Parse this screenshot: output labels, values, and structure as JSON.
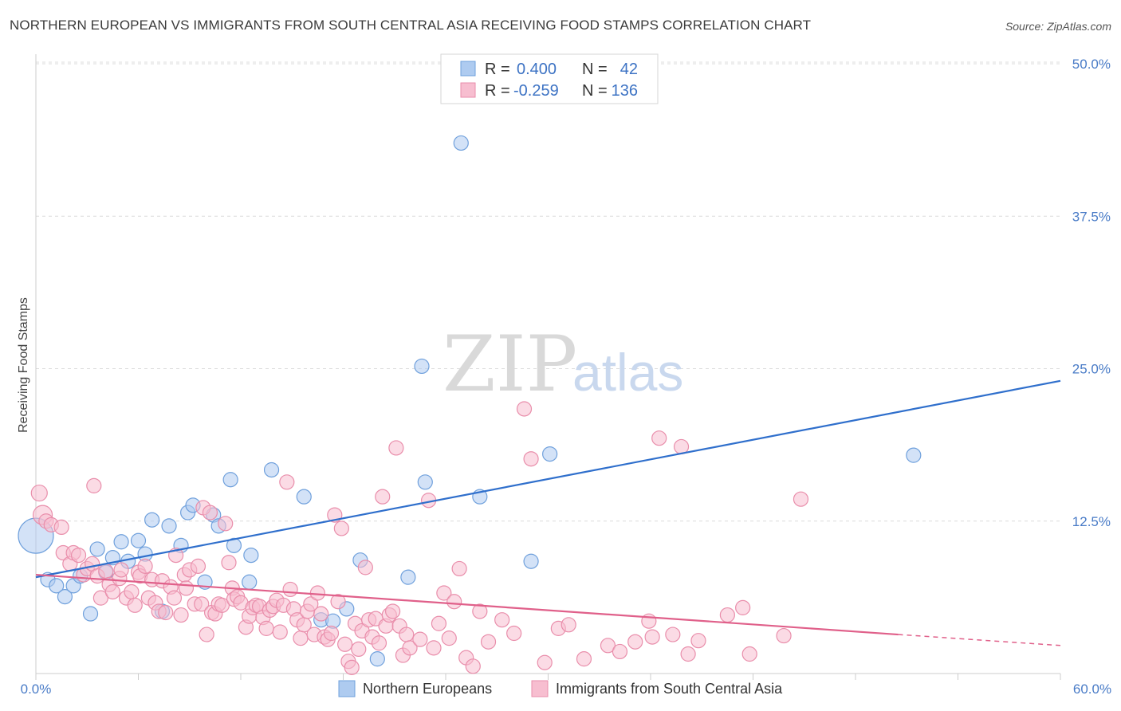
{
  "title": "NORTHERN EUROPEAN VS IMMIGRANTS FROM SOUTH CENTRAL ASIA RECEIVING FOOD STAMPS CORRELATION CHART",
  "source": "Source: ZipAtlas.com",
  "watermark": {
    "zip": "ZIP",
    "atlas": "atlas"
  },
  "chart_data": {
    "type": "scatter",
    "title": "NORTHERN EUROPEAN VS IMMIGRANTS FROM SOUTH CENTRAL ASIA RECEIVING FOOD STAMPS CORRELATION CHART",
    "xlabel": "",
    "ylabel": "Receiving Food Stamps",
    "xlim": [
      0,
      60
    ],
    "ylim": [
      0,
      50
    ],
    "x_tick_labels": [
      "0.0%",
      "60.0%"
    ],
    "y_ticks": [
      12.5,
      25.0,
      37.5,
      50.0
    ],
    "y_tick_labels": [
      "12.5%",
      "25.0%",
      "37.5%",
      "50.0%"
    ],
    "grid": true,
    "legend_top": [
      {
        "r_label": "R =",
        "r_value": "0.400",
        "n_label": "N =",
        "n_value": "42"
      },
      {
        "r_label": "R =",
        "r_value": "-0.259",
        "n_label": "N =",
        "n_value": "136"
      }
    ],
    "series": [
      {
        "name": "Northern Europeans",
        "color": "#6fa0dc",
        "fill": "#aecbf0",
        "line_color": "#2f6fcc",
        "trend": {
          "x0": 0,
          "y0": 7.9,
          "x1": 60,
          "y1": 24.0
        },
        "points": [
          [
            0.0,
            11.3,
            22
          ],
          [
            0.7,
            7.7,
            9
          ],
          [
            1.2,
            7.2,
            9
          ],
          [
            1.7,
            6.3,
            9
          ],
          [
            2.2,
            7.2,
            9
          ],
          [
            2.6,
            8.0,
            9
          ],
          [
            3.2,
            4.9,
            9
          ],
          [
            3.6,
            10.2,
            9
          ],
          [
            4.1,
            8.3,
            9
          ],
          [
            4.5,
            9.5,
            9
          ],
          [
            5.0,
            10.8,
            9
          ],
          [
            5.4,
            9.2,
            9
          ],
          [
            6.0,
            10.9,
            9
          ],
          [
            6.4,
            9.8,
            9
          ],
          [
            6.8,
            12.6,
            9
          ],
          [
            7.4,
            5.1,
            9
          ],
          [
            7.8,
            12.1,
            9
          ],
          [
            8.5,
            10.5,
            9
          ],
          [
            8.9,
            13.2,
            9
          ],
          [
            9.2,
            13.8,
            9
          ],
          [
            9.9,
            7.5,
            9
          ],
          [
            10.4,
            13.0,
            9
          ],
          [
            10.7,
            12.1,
            9
          ],
          [
            11.4,
            15.9,
            9
          ],
          [
            11.6,
            10.5,
            9
          ],
          [
            12.6,
            9.7,
            9
          ],
          [
            12.5,
            7.5,
            9
          ],
          [
            13.8,
            16.7,
            9
          ],
          [
            15.7,
            14.5,
            9
          ],
          [
            16.7,
            4.4,
            9
          ],
          [
            17.4,
            4.3,
            9
          ],
          [
            18.2,
            5.3,
            9
          ],
          [
            19.0,
            9.3,
            9
          ],
          [
            20.0,
            1.2,
            9
          ],
          [
            21.8,
            7.9,
            9
          ],
          [
            22.6,
            25.2,
            9
          ],
          [
            22.8,
            15.7,
            9
          ],
          [
            24.9,
            43.5,
            9
          ],
          [
            26.0,
            14.5,
            9
          ],
          [
            29.0,
            9.2,
            9
          ],
          [
            30.1,
            18.0,
            9
          ],
          [
            51.4,
            17.9,
            9
          ]
        ]
      },
      {
        "name": "Immigrants from South Central Asia",
        "color": "#e98eab",
        "fill": "#f7bed0",
        "line_color": "#e0608a",
        "trend": {
          "x0": 0,
          "y0": 8.1,
          "x1": 50.5,
          "y1": 3.2
        },
        "trend_dashed": {
          "x0": 50.5,
          "y0": 3.2,
          "x1": 60,
          "y1": 2.3
        },
        "points": [
          [
            0.2,
            14.8,
            10
          ],
          [
            0.4,
            13.0,
            12
          ],
          [
            0.6,
            12.5,
            9
          ],
          [
            0.9,
            12.2,
            9
          ],
          [
            1.5,
            12.0,
            9
          ],
          [
            1.6,
            9.9,
            9
          ],
          [
            2.0,
            9.0,
            9
          ],
          [
            2.2,
            9.9,
            9
          ],
          [
            2.5,
            9.7,
            9
          ],
          [
            2.8,
            8.1,
            9
          ],
          [
            3.0,
            8.6,
            9
          ],
          [
            3.3,
            9.0,
            9
          ],
          [
            3.4,
            15.4,
            9
          ],
          [
            3.6,
            8.0,
            9
          ],
          [
            3.8,
            6.2,
            9
          ],
          [
            4.1,
            8.4,
            9
          ],
          [
            4.3,
            7.3,
            9
          ],
          [
            4.5,
            6.7,
            9
          ],
          [
            4.9,
            7.8,
            9
          ],
          [
            5.0,
            8.5,
            9
          ],
          [
            5.3,
            6.2,
            9
          ],
          [
            5.6,
            6.7,
            9
          ],
          [
            5.8,
            5.6,
            9
          ],
          [
            6.0,
            8.3,
            9
          ],
          [
            6.1,
            8.0,
            9
          ],
          [
            6.4,
            8.8,
            9
          ],
          [
            6.6,
            6.2,
            9
          ],
          [
            6.8,
            7.7,
            9
          ],
          [
            7.0,
            5.8,
            9
          ],
          [
            7.2,
            5.1,
            9
          ],
          [
            7.4,
            7.6,
            9
          ],
          [
            7.6,
            5.0,
            9
          ],
          [
            7.9,
            7.1,
            9
          ],
          [
            8.1,
            6.2,
            9
          ],
          [
            8.2,
            9.7,
            9
          ],
          [
            8.5,
            4.8,
            9
          ],
          [
            8.7,
            8.1,
            9
          ],
          [
            8.8,
            7.0,
            9
          ],
          [
            9.0,
            8.5,
            9
          ],
          [
            9.3,
            5.7,
            9
          ],
          [
            9.5,
            8.8,
            9
          ],
          [
            9.7,
            5.7,
            9
          ],
          [
            9.8,
            13.6,
            9
          ],
          [
            10.0,
            3.2,
            9
          ],
          [
            10.2,
            13.2,
            9
          ],
          [
            10.3,
            5.0,
            9
          ],
          [
            10.5,
            4.9,
            9
          ],
          [
            10.7,
            5.7,
            9
          ],
          [
            10.9,
            5.6,
            9
          ],
          [
            11.1,
            12.3,
            9
          ],
          [
            11.3,
            9.1,
            9
          ],
          [
            11.5,
            7.0,
            9
          ],
          [
            11.6,
            6.1,
            9
          ],
          [
            11.8,
            6.3,
            9
          ],
          [
            12.0,
            5.8,
            9
          ],
          [
            12.3,
            3.8,
            9
          ],
          [
            12.5,
            4.7,
            9
          ],
          [
            12.7,
            5.4,
            9
          ],
          [
            12.9,
            5.6,
            9
          ],
          [
            13.1,
            5.5,
            9
          ],
          [
            13.3,
            4.6,
            9
          ],
          [
            13.5,
            3.7,
            9
          ],
          [
            13.7,
            5.2,
            9
          ],
          [
            13.9,
            5.5,
            9
          ],
          [
            14.1,
            6.0,
            9
          ],
          [
            14.3,
            3.4,
            9
          ],
          [
            14.5,
            5.6,
            9
          ],
          [
            14.7,
            15.7,
            9
          ],
          [
            14.9,
            6.9,
            9
          ],
          [
            15.1,
            5.3,
            9
          ],
          [
            15.3,
            4.4,
            9
          ],
          [
            15.5,
            2.9,
            9
          ],
          [
            15.7,
            4.0,
            9
          ],
          [
            15.9,
            5.1,
            9
          ],
          [
            16.1,
            5.7,
            9
          ],
          [
            16.3,
            3.2,
            9
          ],
          [
            16.5,
            6.6,
            9
          ],
          [
            16.7,
            4.9,
            9
          ],
          [
            16.9,
            3.0,
            9
          ],
          [
            17.1,
            2.8,
            9
          ],
          [
            17.3,
            3.3,
            9
          ],
          [
            17.5,
            13.0,
            9
          ],
          [
            17.7,
            5.9,
            9
          ],
          [
            17.9,
            11.9,
            9
          ],
          [
            18.1,
            2.4,
            9
          ],
          [
            18.3,
            1.0,
            9
          ],
          [
            18.5,
            0.5,
            9
          ],
          [
            18.7,
            4.1,
            9
          ],
          [
            18.9,
            2.0,
            9
          ],
          [
            19.1,
            3.5,
            9
          ],
          [
            19.3,
            8.7,
            9
          ],
          [
            19.5,
            4.4,
            9
          ],
          [
            19.7,
            3.0,
            9
          ],
          [
            19.9,
            4.5,
            9
          ],
          [
            20.1,
            2.5,
            9
          ],
          [
            20.3,
            14.5,
            9
          ],
          [
            20.5,
            3.9,
            9
          ],
          [
            20.7,
            4.8,
            9
          ],
          [
            20.9,
            5.1,
            9
          ],
          [
            21.1,
            18.5,
            9
          ],
          [
            21.3,
            3.9,
            9
          ],
          [
            21.5,
            1.5,
            9
          ],
          [
            21.7,
            3.2,
            9
          ],
          [
            21.9,
            2.1,
            9
          ],
          [
            22.5,
            2.8,
            9
          ],
          [
            23.0,
            14.2,
            9
          ],
          [
            23.3,
            2.1,
            9
          ],
          [
            23.6,
            4.1,
            9
          ],
          [
            23.9,
            6.6,
            9
          ],
          [
            24.2,
            2.9,
            9
          ],
          [
            24.5,
            5.9,
            9
          ],
          [
            24.8,
            8.6,
            9
          ],
          [
            25.2,
            1.3,
            9
          ],
          [
            25.6,
            0.6,
            9
          ],
          [
            26.0,
            5.1,
            9
          ],
          [
            26.5,
            2.6,
            9
          ],
          [
            27.3,
            4.4,
            9
          ],
          [
            28.0,
            3.3,
            9
          ],
          [
            28.6,
            21.7,
            9
          ],
          [
            29.0,
            17.6,
            9
          ],
          [
            29.8,
            0.9,
            9
          ],
          [
            30.6,
            3.7,
            9
          ],
          [
            31.2,
            4.0,
            9
          ],
          [
            32.1,
            1.2,
            9
          ],
          [
            33.5,
            2.3,
            9
          ],
          [
            34.2,
            1.8,
            9
          ],
          [
            35.1,
            2.6,
            9
          ],
          [
            35.9,
            4.3,
            9
          ],
          [
            36.1,
            3.0,
            9
          ],
          [
            36.5,
            19.3,
            9
          ],
          [
            37.3,
            3.2,
            9
          ],
          [
            37.8,
            18.6,
            9
          ],
          [
            38.8,
            2.7,
            9
          ],
          [
            40.5,
            4.8,
            9
          ],
          [
            41.4,
            5.4,
            9
          ],
          [
            41.8,
            1.6,
            9
          ],
          [
            43.8,
            3.1,
            9
          ],
          [
            44.8,
            14.3,
            9
          ],
          [
            38.2,
            1.6,
            9
          ]
        ]
      }
    ]
  }
}
